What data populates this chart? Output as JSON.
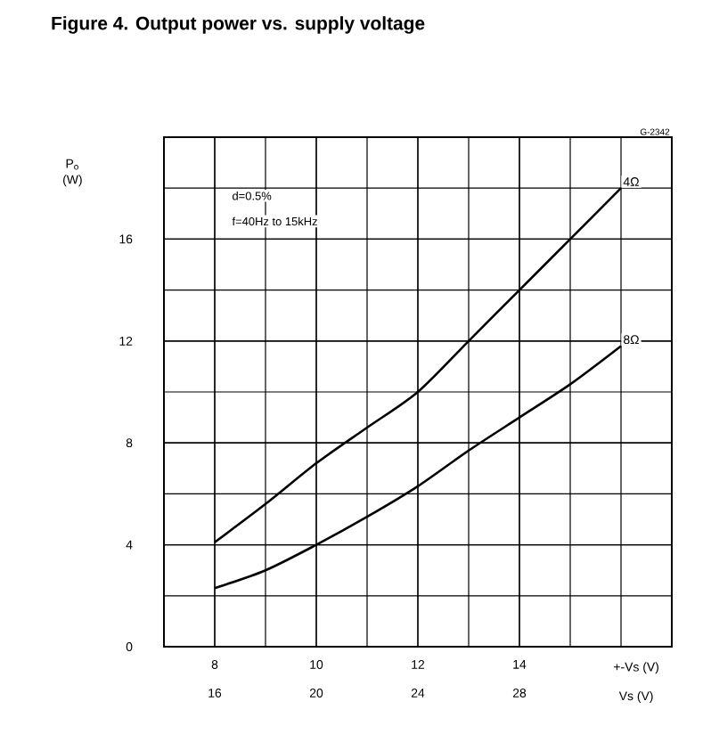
{
  "chart_data": {
    "type": "line",
    "title": "Figure 4.    Output power vs. supply voltage",
    "xlabel": "+-Vs (V)",
    "ylabel": "P$_{o}$ (W)",
    "x2label": "Vs (V)",
    "x": [
      8,
      9,
      10,
      11,
      12,
      13,
      14,
      15,
      16
    ],
    "series": [
      {
        "name": "4Ω",
        "color": "#000000",
        "values": [
          4.1,
          5.6,
          7.2,
          8.6,
          10,
          12,
          14,
          16,
          18
        ]
      },
      {
        "name": "8Ω",
        "color": "#000000",
        "values": [
          2.3,
          3.0,
          4.0,
          5.1,
          6.3,
          7.7,
          9.0,
          10.3,
          11.8
        ]
      }
    ],
    "xlim": [
      7,
      17
    ],
    "xticks": [
      8,
      10,
      12,
      14
    ],
    "ylim": [
      0,
      20
    ],
    "yticks": [
      0,
      4,
      8,
      12,
      16
    ],
    "x2lim": [
      14,
      34
    ],
    "x2ticks": [
      16,
      20,
      24,
      28
    ],
    "grid": true,
    "annotations": [
      "d=0.5%",
      "f=40Hz to 15kHz",
      "G-2342"
    ]
  }
}
